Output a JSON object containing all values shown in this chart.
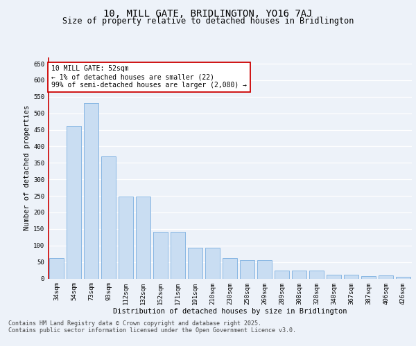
{
  "title": "10, MILL GATE, BRIDLINGTON, YO16 7AJ",
  "subtitle": "Size of property relative to detached houses in Bridlington",
  "xlabel": "Distribution of detached houses by size in Bridlington",
  "ylabel": "Number of detached properties",
  "categories": [
    "34sqm",
    "54sqm",
    "73sqm",
    "93sqm",
    "112sqm",
    "132sqm",
    "152sqm",
    "171sqm",
    "191sqm",
    "210sqm",
    "230sqm",
    "250sqm",
    "269sqm",
    "289sqm",
    "308sqm",
    "328sqm",
    "348sqm",
    "367sqm",
    "387sqm",
    "406sqm",
    "426sqm"
  ],
  "values": [
    62,
    462,
    530,
    370,
    248,
    248,
    142,
    142,
    93,
    93,
    62,
    55,
    55,
    25,
    25,
    25,
    11,
    11,
    8,
    10,
    5
  ],
  "bar_color": "#c9ddf2",
  "bar_edge_color": "#7aaee0",
  "annotation_box_color": "#ffffff",
  "annotation_box_edge": "#cc0000",
  "annotation_line_color": "#cc0000",
  "annotation_text": "10 MILL GATE: 52sqm\n← 1% of detached houses are smaller (22)\n99% of semi-detached houses are larger (2,080) →",
  "ylim": [
    0,
    670
  ],
  "yticks": [
    0,
    50,
    100,
    150,
    200,
    250,
    300,
    350,
    400,
    450,
    500,
    550,
    600,
    650
  ],
  "background_color": "#edf2f9",
  "footer": "Contains HM Land Registry data © Crown copyright and database right 2025.\nContains public sector information licensed under the Open Government Licence v3.0.",
  "grid_color": "#ffffff",
  "title_fontsize": 10,
  "subtitle_fontsize": 8.5,
  "axis_label_fontsize": 7.5,
  "tick_fontsize": 6.5,
  "annotation_fontsize": 7,
  "footer_fontsize": 6
}
